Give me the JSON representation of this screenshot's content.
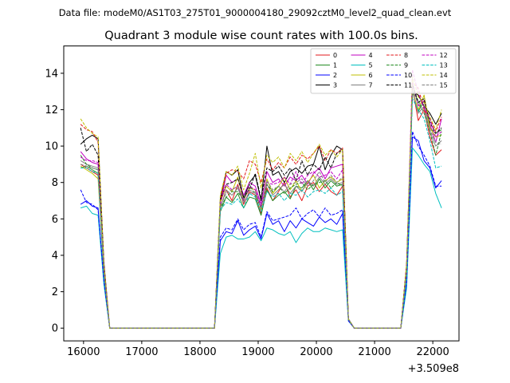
{
  "chart_data": {
    "type": "line",
    "suptitle": "Data file: modeM0/AS1T03_275T01_9000004180_29092cztM0_level2_quad_clean.evt",
    "title": "Quadrant 3 module wise count rates with 100.0s bins.",
    "xlabel": "",
    "ylabel": "",
    "x_offset_label": "+3.509e8",
    "xlim": [
      15660,
      22450
    ],
    "ylim": [
      -0.7,
      15.5
    ],
    "xticks": [
      16000,
      17000,
      18000,
      19000,
      20000,
      21000,
      22000
    ],
    "yticks": [
      0,
      2,
      4,
      6,
      8,
      10,
      12,
      14
    ],
    "legend_location": "upper-right",
    "x": [
      15950,
      16050,
      16150,
      16250,
      16350,
      16450,
      18250,
      18350,
      18450,
      18550,
      18650,
      18750,
      18850,
      18950,
      19050,
      19150,
      19250,
      19350,
      19450,
      19550,
      19650,
      19750,
      19850,
      19950,
      20050,
      20150,
      20250,
      20350,
      20450,
      20550,
      20650,
      21450,
      21550,
      21650,
      21750,
      21850,
      21950,
      22050,
      22150
    ],
    "series": [
      {
        "name": "0",
        "color": "#e31a1c",
        "dash": "solid",
        "values": [
          9.0,
          8.8,
          8.6,
          8.4,
          3.0,
          0.0,
          0.0,
          6.6,
          7.6,
          7.0,
          7.9,
          6.8,
          7.5,
          7.3,
          6.3,
          7.7,
          7.0,
          7.5,
          8.0,
          7.2,
          7.6,
          7.0,
          7.8,
          8.0,
          7.5,
          7.9,
          7.5,
          7.3,
          7.8,
          0.5,
          0.0,
          0.0,
          3.0,
          13.2,
          11.4,
          12.0,
          10.5,
          9.5,
          9.8
        ]
      },
      {
        "name": "1",
        "color": "#238b23",
        "dash": "solid",
        "values": [
          8.8,
          8.9,
          8.7,
          8.5,
          3.0,
          0.0,
          0.0,
          6.4,
          7.2,
          6.9,
          7.4,
          6.6,
          7.2,
          7.1,
          6.2,
          7.6,
          7.0,
          7.3,
          7.5,
          7.1,
          7.8,
          7.7,
          8.1,
          7.6,
          8.2,
          7.7,
          8.1,
          7.8,
          7.9,
          0.5,
          0.0,
          0.0,
          3.0,
          13.0,
          11.9,
          12.5,
          11.0,
          10.7,
          10.9
        ]
      },
      {
        "name": "2",
        "color": "#0000ff",
        "dash": "solid",
        "values": [
          6.8,
          7.0,
          6.7,
          6.6,
          2.5,
          0.0,
          0.0,
          4.8,
          5.3,
          5.2,
          5.9,
          5.1,
          5.4,
          5.6,
          4.9,
          6.3,
          5.7,
          5.9,
          5.3,
          5.9,
          5.5,
          6.0,
          5.8,
          5.6,
          6.1,
          5.8,
          6.0,
          5.7,
          6.3,
          0.4,
          0.0,
          0.0,
          2.4,
          10.5,
          10.3,
          9.2,
          8.8,
          7.7,
          8.1
        ]
      },
      {
        "name": "3",
        "color": "#000000",
        "dash": "solid",
        "values": [
          10.1,
          10.4,
          10.6,
          10.4,
          3.6,
          0.0,
          0.0,
          7.1,
          8.6,
          8.4,
          8.7,
          7.1,
          8.0,
          8.4,
          7.0,
          10.0,
          8.4,
          8.6,
          8.0,
          8.6,
          8.8,
          8.5,
          8.9,
          9.0,
          10.0,
          8.7,
          9.5,
          10.0,
          9.8,
          0.5,
          0.0,
          0.0,
          3.5,
          13.0,
          12.8,
          12.2,
          11.8,
          11.2,
          11.8
        ]
      },
      {
        "name": "4",
        "color": "#c000c0",
        "dash": "solid",
        "values": [
          9.7,
          9.3,
          9.1,
          9.0,
          3.3,
          0.0,
          0.0,
          6.8,
          8.4,
          8.0,
          8.2,
          7.3,
          8.0,
          7.8,
          6.8,
          8.6,
          8.0,
          8.2,
          7.8,
          8.3,
          8.1,
          8.4,
          7.9,
          8.5,
          8.8,
          8.2,
          8.8,
          8.9,
          9.0,
          0.5,
          0.0,
          0.0,
          3.2,
          13.5,
          12.2,
          12.5,
          11.2,
          10.2,
          11.5
        ]
      },
      {
        "name": "5",
        "color": "#00bfbf",
        "dash": "solid",
        "values": [
          6.6,
          6.7,
          6.3,
          6.2,
          2.4,
          0.0,
          0.0,
          4.1,
          5.0,
          5.1,
          4.9,
          4.9,
          5.0,
          5.3,
          4.8,
          5.5,
          5.4,
          5.2,
          5.1,
          5.3,
          4.7,
          5.2,
          5.5,
          5.3,
          5.3,
          5.5,
          5.4,
          5.3,
          5.4,
          0.4,
          0.0,
          0.0,
          2.2,
          9.9,
          9.5,
          9.0,
          8.6,
          7.4,
          6.6
        ]
      },
      {
        "name": "6",
        "color": "#bfbf00",
        "dash": "solid",
        "values": [
          8.9,
          8.7,
          8.5,
          8.2,
          3.0,
          0.0,
          0.0,
          6.9,
          7.8,
          7.5,
          8.3,
          7.0,
          7.7,
          7.6,
          6.5,
          8.2,
          7.4,
          7.8,
          8.3,
          7.6,
          8.1,
          7.5,
          8.0,
          8.4,
          7.7,
          8.1,
          8.3,
          8.0,
          8.2,
          0.5,
          0.0,
          0.0,
          3.1,
          13.0,
          12.0,
          12.8,
          11.0,
          10.5,
          10.6
        ]
      },
      {
        "name": "7",
        "color": "#808080",
        "dash": "solid",
        "values": [
          9.2,
          9.0,
          8.9,
          8.8,
          3.1,
          0.0,
          0.0,
          6.6,
          7.6,
          7.3,
          7.7,
          6.9,
          7.4,
          7.5,
          6.6,
          7.9,
          7.3,
          7.6,
          7.9,
          7.4,
          7.8,
          7.5,
          8.1,
          7.8,
          8.3,
          7.9,
          8.2,
          7.9,
          8.0,
          0.5,
          0.0,
          0.0,
          3.0,
          13.0,
          11.8,
          12.2,
          10.8,
          10.0,
          10.3
        ]
      },
      {
        "name": "8",
        "color": "#e31a1c",
        "dash": "dashed",
        "values": [
          11.2,
          10.9,
          10.8,
          10.2,
          3.5,
          0.0,
          0.0,
          7.0,
          8.5,
          8.7,
          8.6,
          8.2,
          9.2,
          9.0,
          8.0,
          9.3,
          8.7,
          9.1,
          8.8,
          9.4,
          9.0,
          9.5,
          9.3,
          9.6,
          10.0,
          9.2,
          9.8,
          9.6,
          9.9,
          0.5,
          0.0,
          0.0,
          3.5,
          13.5,
          13.2,
          12.0,
          11.5,
          10.8,
          11.6
        ]
      },
      {
        "name": "9",
        "color": "#238b23",
        "dash": "dashed",
        "values": [
          9.5,
          9.0,
          8.8,
          8.7,
          3.1,
          0.0,
          0.0,
          6.6,
          7.2,
          7.5,
          7.5,
          7.0,
          7.9,
          7.3,
          6.6,
          7.9,
          7.5,
          7.8,
          7.4,
          7.7,
          7.9,
          8.0,
          7.6,
          7.9,
          8.0,
          8.1,
          7.7,
          8.0,
          7.8,
          0.5,
          0.0,
          0.0,
          3.0,
          13.0,
          12.5,
          11.8,
          10.8,
          9.5,
          10.8
        ]
      },
      {
        "name": "10",
        "color": "#0000ff",
        "dash": "dashed",
        "values": [
          7.6,
          6.9,
          6.8,
          6.5,
          2.6,
          0.0,
          0.0,
          5.0,
          5.5,
          5.4,
          6.0,
          5.4,
          5.7,
          5.8,
          5.0,
          6.4,
          5.9,
          6.0,
          6.1,
          6.2,
          6.6,
          6.0,
          6.3,
          6.5,
          6.1,
          6.6,
          6.2,
          6.3,
          6.5,
          0.4,
          0.0,
          0.0,
          2.5,
          10.8,
          10.0,
          9.5,
          8.9,
          7.8,
          7.8
        ]
      },
      {
        "name": "11",
        "color": "#000000",
        "dash": "dashed",
        "values": [
          11.0,
          9.7,
          10.1,
          9.5,
          3.2,
          0.0,
          0.0,
          7.0,
          7.9,
          8.0,
          8.2,
          7.2,
          7.6,
          8.5,
          7.1,
          8.8,
          8.6,
          8.9,
          8.4,
          8.8,
          8.1,
          9.2,
          8.4,
          9.0,
          8.7,
          9.4,
          8.8,
          9.6,
          9.8,
          0.5,
          0.0,
          0.0,
          3.4,
          13.4,
          12.4,
          12.6,
          11.3,
          10.7,
          11.0
        ]
      },
      {
        "name": "12",
        "color": "#c000c0",
        "dash": "dashed",
        "values": [
          9.4,
          9.2,
          9.2,
          9.1,
          3.2,
          0.0,
          0.0,
          6.9,
          7.9,
          7.6,
          7.8,
          7.0,
          7.8,
          7.6,
          6.7,
          8.0,
          7.9,
          8.0,
          8.3,
          7.9,
          8.6,
          7.9,
          8.4,
          8.6,
          8.3,
          8.4,
          8.6,
          8.2,
          8.7,
          0.5,
          0.0,
          0.0,
          3.2,
          14.2,
          12.9,
          12.1,
          11.5,
          10.5,
          10.8
        ]
      },
      {
        "name": "13",
        "color": "#00bfbf",
        "dash": "dashed",
        "values": [
          8.8,
          8.8,
          8.6,
          8.5,
          3.0,
          0.0,
          0.0,
          6.5,
          6.9,
          6.8,
          7.1,
          6.6,
          7.4,
          7.2,
          6.4,
          7.5,
          7.2,
          7.4,
          7.0,
          7.4,
          7.3,
          7.6,
          7.2,
          7.5,
          7.6,
          7.4,
          7.7,
          7.3,
          7.5,
          0.5,
          0.0,
          0.0,
          2.9,
          12.6,
          12.0,
          11.5,
          10.3,
          8.8,
          8.9
        ]
      },
      {
        "name": "14",
        "color": "#bfbf00",
        "dash": "dashed",
        "values": [
          11.5,
          11.0,
          10.7,
          10.5,
          3.4,
          0.0,
          0.0,
          7.3,
          8.6,
          8.4,
          8.9,
          7.6,
          8.5,
          9.6,
          7.7,
          9.5,
          9.1,
          9.4,
          8.8,
          9.6,
          9.2,
          9.7,
          9.1,
          9.6,
          10.1,
          9.5,
          9.8,
          9.4,
          9.8,
          0.5,
          0.0,
          0.0,
          3.5,
          13.8,
          12.7,
          12.4,
          11.6,
          10.9,
          12.0
        ]
      },
      {
        "name": "15",
        "color": "#808080",
        "dash": "dashed",
        "values": [
          9.0,
          8.9,
          8.8,
          8.7,
          3.1,
          0.0,
          0.0,
          6.7,
          7.4,
          7.6,
          7.8,
          7.1,
          7.6,
          7.4,
          6.6,
          8.1,
          7.6,
          7.8,
          7.5,
          7.9,
          8.0,
          8.2,
          7.8,
          8.1,
          8.6,
          8.0,
          8.4,
          8.0,
          8.3,
          0.5,
          0.0,
          0.0,
          3.1,
          13.1,
          12.3,
          11.9,
          10.9,
          10.2,
          10.1
        ]
      }
    ]
  }
}
